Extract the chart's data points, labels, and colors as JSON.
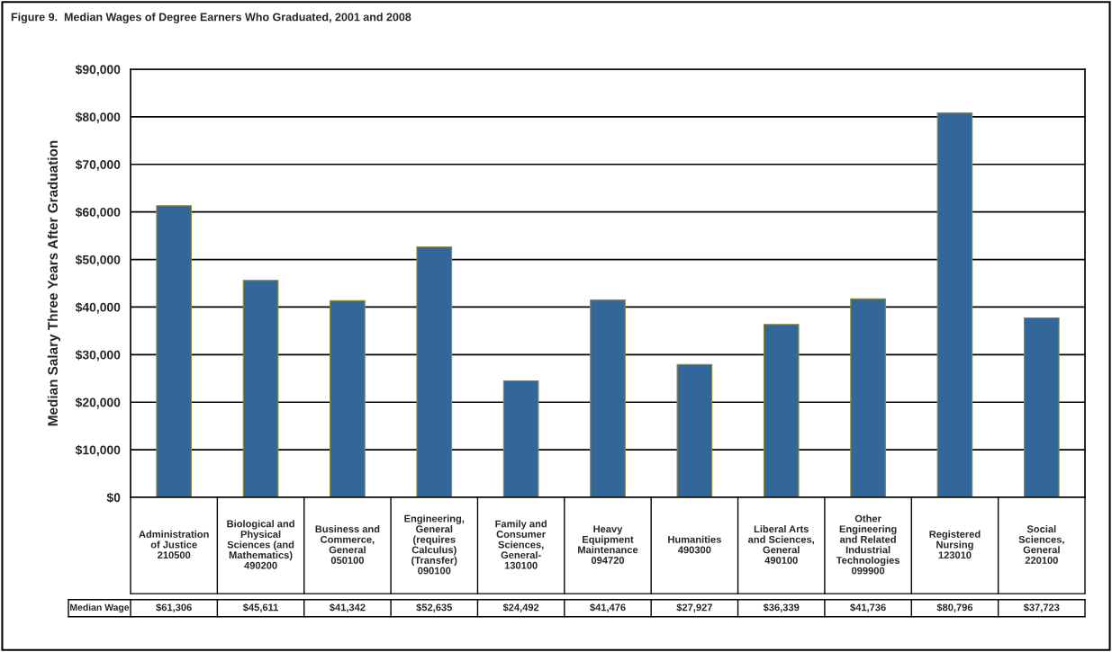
{
  "chart_data": {
    "type": "bar",
    "title": "Figure 9.  Median Wages of Degree Earners Who Graduated, 2001 and 2008",
    "ylabel": "Median Salary Three Years After Graduation",
    "categories": [
      "Administration\nof Justice\n210500",
      "Biological and\nPhysical\nSciences (and\nMathematics)\n490200",
      "Business and\nCommerce,\nGeneral\n050100",
      "Engineering,\nGeneral\n(requires\nCalculus)\n(Transfer)\n090100",
      "Family and\nConsumer\nSciences,\nGeneral-\n130100",
      "Heavy\nEquipment\nMaintenance\n094720",
      "Humanities\n490300",
      "Liberal Arts\nand Sciences,\nGeneral\n490100",
      "Other\nEngineering\nand Related\nIndustrial\nTechnologies\n099900",
      "Registered\nNursing\n123010",
      "Social\nSciences,\nGeneral\n220100"
    ],
    "values": [
      61306,
      45611,
      41342,
      52635,
      24492,
      41476,
      27927,
      36339,
      41736,
      80796,
      37723
    ],
    "value_labels": [
      "$61,306",
      "$45,611",
      "$41,342",
      "$52,635",
      "$24,492",
      "$41,476",
      "$27,927",
      "$36,339",
      "$41,736",
      "$80,796",
      "$37,723"
    ],
    "color": "#336699",
    "ylim": [
      0,
      90000
    ],
    "yticks": [
      {
        "value": 0,
        "label": "$0"
      },
      {
        "value": 10000,
        "label": "$10,000"
      },
      {
        "value": 20000,
        "label": "$20,000"
      },
      {
        "value": 30000,
        "label": "$30,000"
      },
      {
        "value": 40000,
        "label": "$40,000"
      },
      {
        "value": 50000,
        "label": "$50,000"
      },
      {
        "value": 60000,
        "label": "$60,000"
      },
      {
        "value": 70000,
        "label": "$70,000"
      },
      {
        "value": 80000,
        "label": "$80,000"
      },
      {
        "value": 90000,
        "label": "$90,000"
      }
    ],
    "grid": "y",
    "annotations": [
      "Median Wage"
    ]
  }
}
